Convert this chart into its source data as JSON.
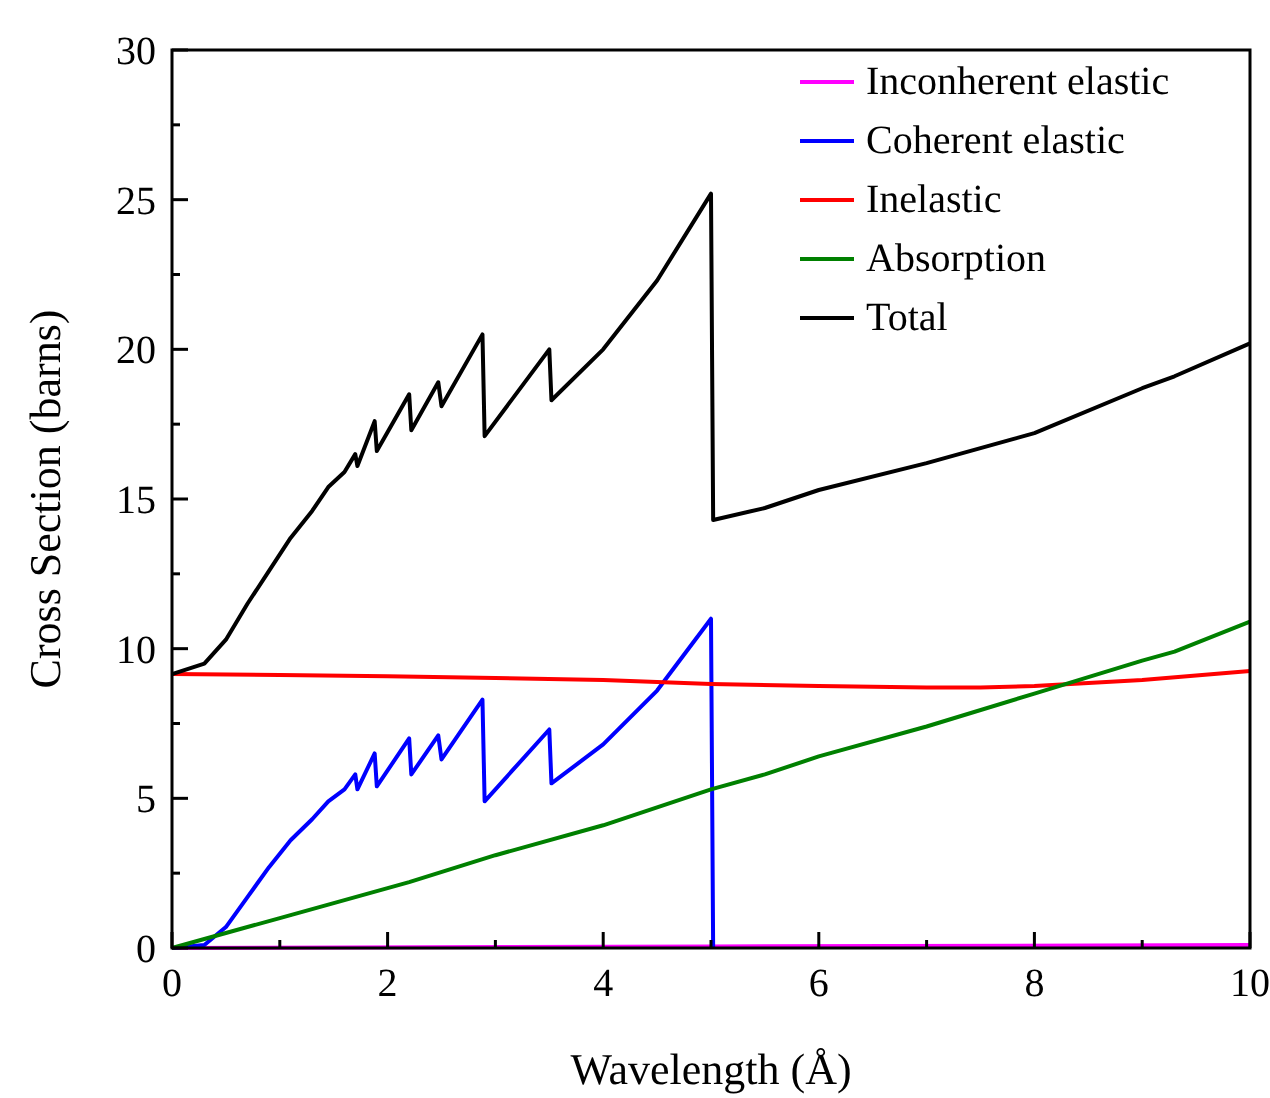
{
  "chart_data": {
    "type": "line",
    "xlabel": "Wavelength (Å)",
    "ylabel": "Cross Section (barns)",
    "xlim": [
      0,
      10
    ],
    "ylim": [
      0,
      30
    ],
    "xticks": [
      0,
      {
        "value": 1,
        "label": null
      },
      2,
      {
        "value": 3,
        "label": null
      },
      4,
      {
        "value": 5,
        "label": null
      },
      6,
      {
        "value": 7,
        "label": null
      },
      8,
      {
        "value": 9,
        "label": null
      },
      10
    ],
    "yticks": [
      0,
      {
        "value": 2.5,
        "label": null
      },
      5,
      {
        "value": 7.5,
        "label": null
      },
      10,
      {
        "value": 12.5,
        "label": null
      },
      15,
      {
        "value": 17.5,
        "label": null
      },
      20,
      {
        "value": 22.5,
        "label": null
      },
      25,
      {
        "value": 27.5,
        "label": null
      },
      30
    ],
    "grid": false,
    "legend": "top right",
    "marker": "none",
    "line_style": "solid",
    "series": [
      {
        "name": "Inconherent elastic",
        "color": "#ff00ff",
        "x": [
          0,
          5,
          10
        ],
        "values": [
          0,
          0.05,
          0.1
        ]
      },
      {
        "name": "Coherent elastic",
        "color": "#0000ff",
        "x": [
          0,
          0.3,
          0.5,
          0.7,
          0.9,
          1.1,
          1.3,
          1.45,
          1.6,
          1.7,
          1.72,
          1.88,
          1.9,
          2.2,
          2.22,
          2.47,
          2.5,
          2.88,
          2.9,
          3.5,
          3.52,
          4.0,
          4.5,
          5.0,
          5.02
        ],
        "values": [
          0,
          0.1,
          0.7,
          1.7,
          2.7,
          3.6,
          4.3,
          4.9,
          5.3,
          5.8,
          5.3,
          6.5,
          5.4,
          7.0,
          5.8,
          7.1,
          6.3,
          8.3,
          4.9,
          7.3,
          5.5,
          6.8,
          8.6,
          11.0,
          0
        ]
      },
      {
        "name": "Inelastic",
        "color": "#ff0000",
        "x": [
          0,
          1,
          2,
          3,
          4,
          5,
          6,
          7,
          7.5,
          8,
          9,
          10
        ],
        "values": [
          9.15,
          9.12,
          9.08,
          9.02,
          8.95,
          8.82,
          8.75,
          8.7,
          8.7,
          8.75,
          8.95,
          9.25
        ]
      },
      {
        "name": "Absorption",
        "color": "#008000",
        "x": [
          0,
          0.5,
          1,
          2,
          2.2,
          3,
          4,
          5,
          5.5,
          6,
          7,
          8,
          9,
          9.3,
          10
        ],
        "values": [
          0,
          0.5,
          1.0,
          2.0,
          2.2,
          3.1,
          4.1,
          5.3,
          5.8,
          6.4,
          7.4,
          8.5,
          9.6,
          9.9,
          10.9
        ]
      },
      {
        "name": "Total",
        "color": "#000000",
        "x": [
          0,
          0.3,
          0.5,
          0.7,
          0.9,
          1.1,
          1.3,
          1.45,
          1.6,
          1.7,
          1.72,
          1.88,
          1.9,
          2.2,
          2.22,
          2.47,
          2.5,
          2.88,
          2.9,
          3.5,
          3.52,
          4.0,
          4.5,
          5.0,
          5.02,
          5.5,
          6,
          7,
          7.8,
          8,
          9,
          9.3,
          10
        ],
        "values": [
          9.15,
          9.5,
          10.3,
          11.5,
          12.6,
          13.7,
          14.6,
          15.4,
          15.9,
          16.5,
          16.1,
          17.6,
          16.6,
          18.5,
          17.3,
          18.9,
          18.1,
          20.5,
          17.1,
          20.0,
          18.3,
          20.0,
          22.3,
          25.2,
          14.3,
          14.7,
          15.3,
          16.2,
          17.0,
          17.2,
          18.7,
          19.1,
          20.2
        ]
      }
    ]
  }
}
